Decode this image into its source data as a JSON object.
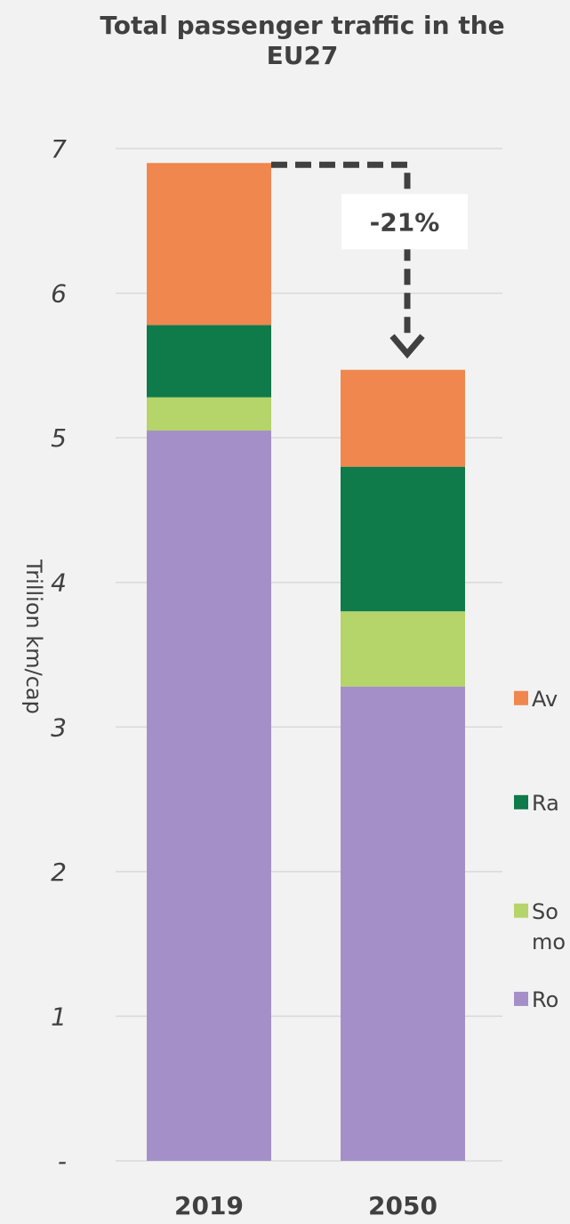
{
  "chart_data": {
    "type": "bar",
    "stacked": true,
    "title": "Total passenger traffic in the\nEU27",
    "ylabel": "Trillion km/cap",
    "categories": [
      "2019",
      "2050"
    ],
    "y_tick_labels": [
      "-",
      "1",
      "2",
      "3",
      "4",
      "5",
      "6",
      "7"
    ],
    "ylim": [
      0,
      7
    ],
    "grid": true,
    "legend_position": "right",
    "series": [
      {
        "name": "Road",
        "legend_label": "Ro",
        "color": "#a58fc8",
        "values": [
          5.05,
          3.28
        ]
      },
      {
        "name": "Soft mobility",
        "legend_label": "So\nmo",
        "color": "#b5d46a",
        "values": [
          0.23,
          0.52
        ]
      },
      {
        "name": "Rail",
        "legend_label": "Ra",
        "color": "#0f7a4a",
        "values": [
          0.5,
          1.0
        ]
      },
      {
        "name": "Aviation",
        "legend_label": "Av",
        "color": "#f0874f",
        "values": [
          1.12,
          0.67
        ]
      }
    ],
    "legend_order": [
      "Aviation",
      "Rail",
      "Soft mobility",
      "Road"
    ],
    "annotations": [
      {
        "text": "-21%",
        "from_category": "2019",
        "to_category": "2050"
      }
    ]
  }
}
